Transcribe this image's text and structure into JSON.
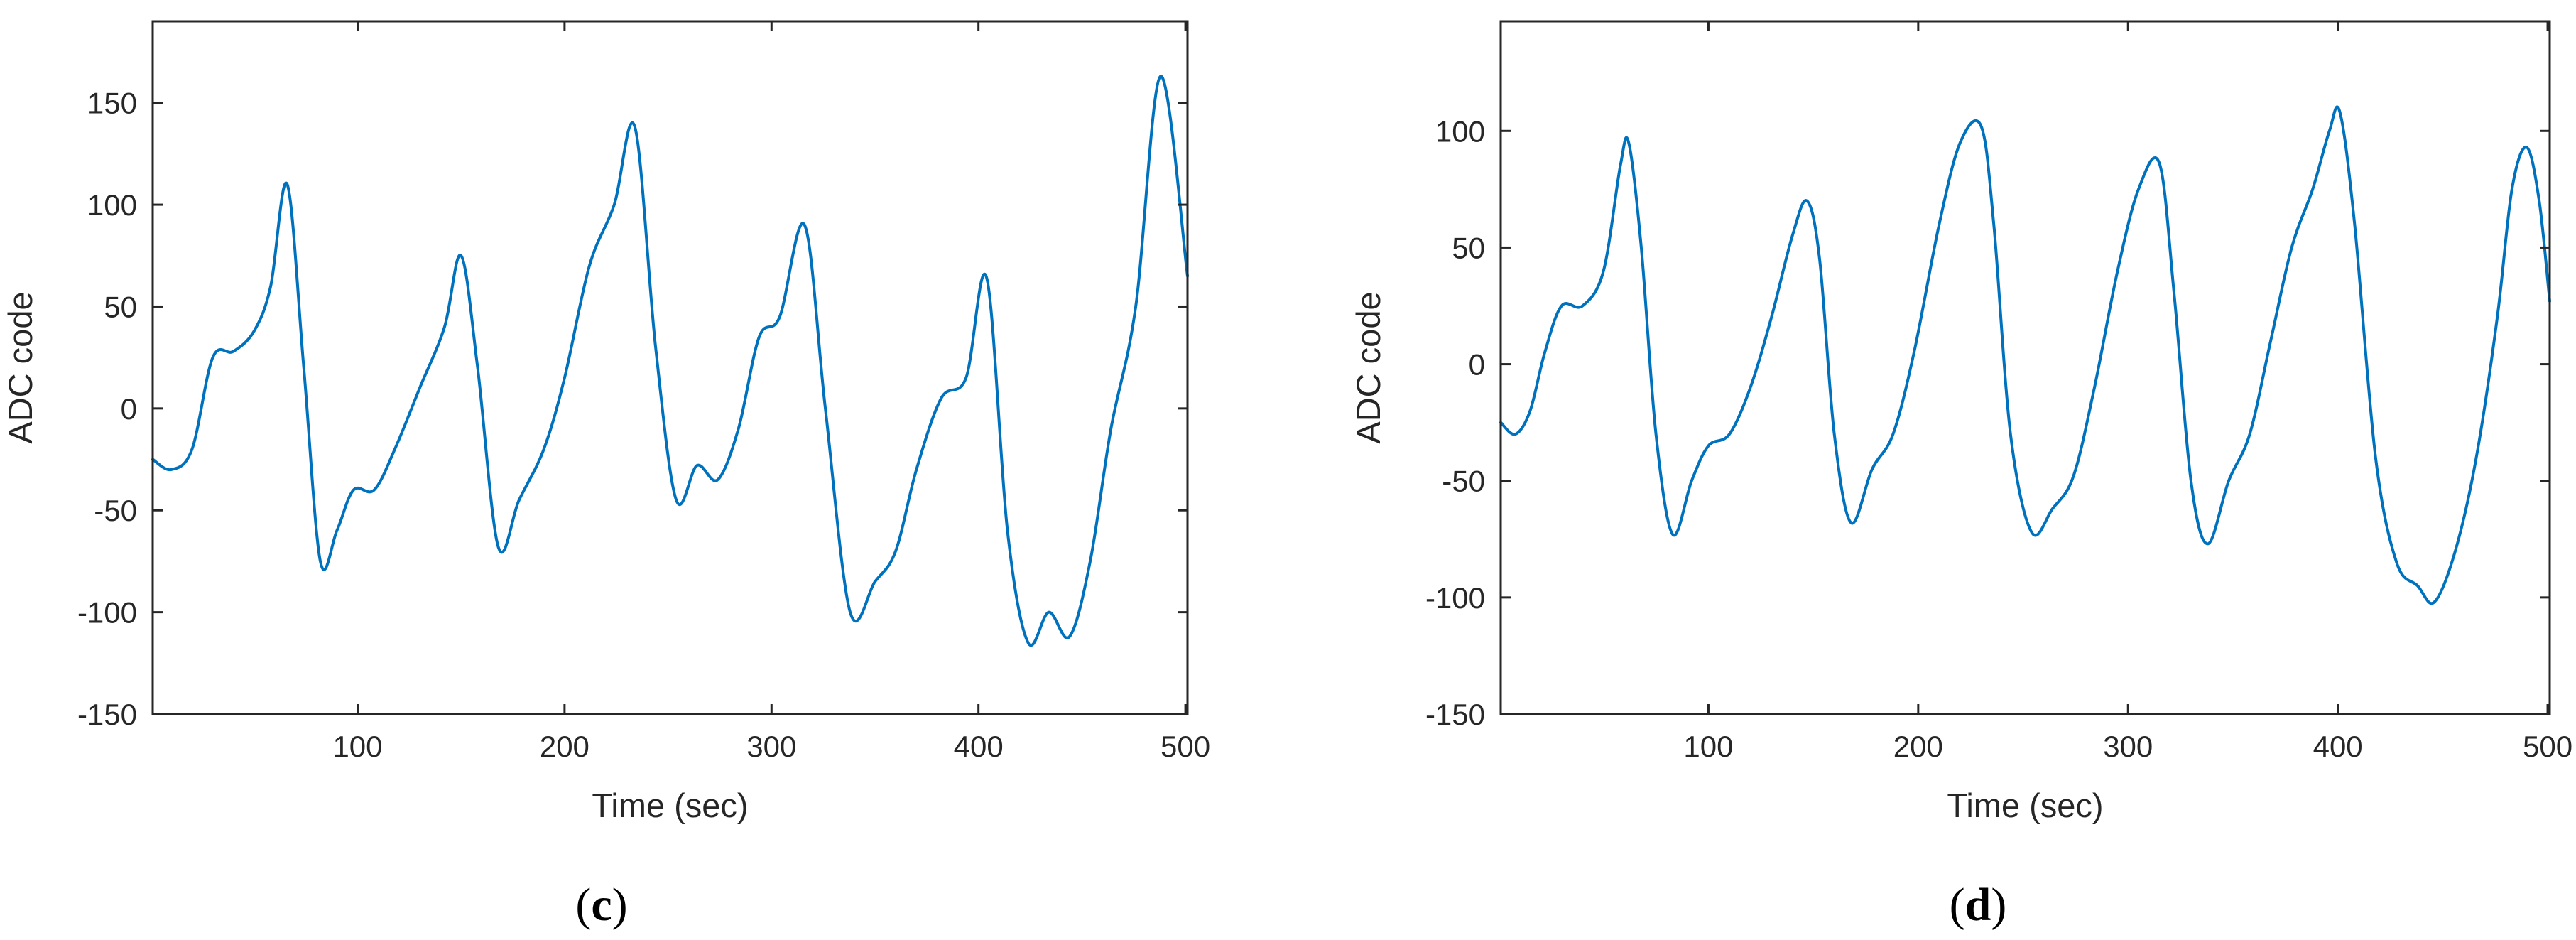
{
  "colors": {
    "series": "#0072BD",
    "axis": "#262626"
  },
  "chart_data": [
    {
      "type": "line",
      "panel_label": "c",
      "xlabel": "Time (sec)",
      "ylabel": "ADC code",
      "xlim": [
        1,
        501
      ],
      "ylim": [
        -150,
        190
      ],
      "xticks": [
        100,
        200,
        300,
        400,
        500
      ],
      "yticks": [
        -150,
        -100,
        -50,
        0,
        50,
        100,
        150
      ],
      "grid": false,
      "series": [
        {
          "x": [
            1,
            10,
            20,
            30,
            40,
            50,
            58,
            66,
            74,
            82,
            90,
            98,
            108,
            118,
            130,
            142,
            150,
            158,
            168,
            178,
            190,
            200,
            212,
            224,
            234,
            244,
            254,
            264,
            274,
            284,
            294,
            304,
            316,
            326,
            338,
            350,
            360,
            370,
            382,
            394,
            404,
            414,
            424,
            434,
            444,
            454,
            464,
            476,
            488,
            501
          ],
          "y": [
            -25,
            -30,
            -20,
            25,
            28,
            38,
            60,
            110,
            20,
            -75,
            -60,
            -40,
            -40,
            -20,
            10,
            40,
            75,
            20,
            -68,
            -45,
            -20,
            15,
            70,
            100,
            138,
            30,
            -45,
            -28,
            -35,
            -10,
            35,
            45,
            90,
            0,
            -100,
            -85,
            -70,
            -30,
            5,
            15,
            64,
            -60,
            -115,
            -100,
            -112,
            -75,
            -10,
            50,
            163,
            65
          ]
        }
      ]
    },
    {
      "type": "line",
      "panel_label": "d",
      "xlabel": "Time (sec)",
      "ylabel": "ADC code",
      "xlim": [
        1,
        501
      ],
      "ylim": [
        -150,
        147
      ],
      "xticks": [
        100,
        200,
        300,
        400,
        500
      ],
      "yticks": [
        -150,
        -100,
        -50,
        0,
        50,
        100
      ],
      "grid": false,
      "series": [
        {
          "x": [
            1,
            8,
            15,
            22,
            30,
            40,
            50,
            58,
            62,
            68,
            75,
            83,
            92,
            100,
            110,
            120,
            130,
            140,
            147,
            153,
            160,
            168,
            178,
            188,
            198,
            210,
            220,
            230,
            236,
            244,
            254,
            264,
            274,
            284,
            295,
            305,
            315,
            322,
            330,
            338,
            348,
            358,
            368,
            378,
            388,
            396,
            401,
            408,
            418,
            428,
            438,
            446,
            456,
            466,
            476,
            483,
            490,
            496,
            501
          ],
          "y": [
            -25,
            -30,
            -20,
            5,
            25,
            25,
            40,
            85,
            95,
            50,
            -30,
            -73,
            -50,
            -35,
            -30,
            -10,
            20,
            55,
            70,
            45,
            -30,
            -68,
            -45,
            -30,
            5,
            60,
            95,
            102,
            60,
            -30,
            -72,
            -62,
            -48,
            -10,
            40,
            75,
            86,
            30,
            -50,
            -77,
            -50,
            -30,
            10,
            50,
            75,
            100,
            108,
            60,
            -40,
            -85,
            -95,
            -102,
            -80,
            -40,
            20,
            75,
            93,
            70,
            27
          ]
        }
      ]
    }
  ]
}
